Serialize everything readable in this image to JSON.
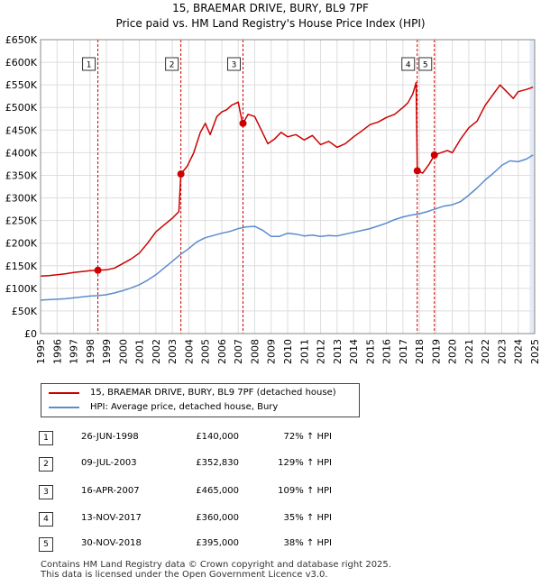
{
  "title": "15, BRAEMAR DRIVE, BURY, BL9 7PF",
  "subtitle": "Price paid vs. HM Land Registry's House Price Index (HPI)",
  "colors": {
    "property": "#cc0000",
    "hpi": "#5b8ccc",
    "marker_line": "#cc0000",
    "grid": "#dddddd",
    "band": "#dde6f3"
  },
  "chart_data": {
    "type": "line",
    "xlim": [
      1995,
      2025
    ],
    "ylim": [
      0,
      650000
    ],
    "yticks": [
      0,
      50000,
      100000,
      150000,
      200000,
      250000,
      300000,
      350000,
      400000,
      450000,
      500000,
      550000,
      600000,
      650000
    ],
    "ytick_labels": [
      "£0",
      "£50K",
      "£100K",
      "£150K",
      "£200K",
      "£250K",
      "£300K",
      "£350K",
      "£400K",
      "£450K",
      "£500K",
      "£550K",
      "£600K",
      "£650K"
    ],
    "xticks": [
      1995,
      1996,
      1997,
      1998,
      1999,
      2000,
      2001,
      2002,
      2003,
      2004,
      2005,
      2006,
      2007,
      2008,
      2009,
      2010,
      2011,
      2012,
      2013,
      2014,
      2015,
      2016,
      2017,
      2018,
      2019,
      2020,
      2021,
      2022,
      2023,
      2024,
      2025
    ],
    "xtick_labels": [
      "1995",
      "1996",
      "1997",
      "1998",
      "1999",
      "2000",
      "2001",
      "2002",
      "2003",
      "2004",
      "2005",
      "2006",
      "2007",
      "2008",
      "2009",
      "2010",
      "2011",
      "2012",
      "2013",
      "2014",
      "2015",
      "2016",
      "2017",
      "2018",
      "2019",
      "2020",
      "2021",
      "2022",
      "2023",
      "2024",
      "2025"
    ],
    "series": [
      {
        "name": "15, BRAEMAR DRIVE, BURY, BL9 7PF (detached house)",
        "color": "#cc0000",
        "x": [
          1995.0,
          1995.5,
          1996.0,
          1996.5,
          1997.0,
          1997.5,
          1998.0,
          1998.48,
          1999.0,
          1999.5,
          2000.0,
          2000.5,
          2001.0,
          2001.5,
          2002.0,
          2002.5,
          2003.0,
          2003.4,
          2003.52,
          2003.9,
          2004.3,
          2004.7,
          2005.0,
          2005.3,
          2005.7,
          2006.0,
          2006.3,
          2006.6,
          2006.9,
          2007.0,
          2007.2,
          2007.29,
          2007.6,
          2008.0,
          2008.4,
          2008.8,
          2009.2,
          2009.6,
          2010.0,
          2010.5,
          2011.0,
          2011.5,
          2012.0,
          2012.5,
          2013.0,
          2013.5,
          2014.0,
          2014.5,
          2015.0,
          2015.5,
          2016.0,
          2016.5,
          2017.0,
          2017.3,
          2017.6,
          2017.8,
          2017.87,
          2018.2,
          2018.6,
          2018.91,
          2019.3,
          2019.7,
          2020.0,
          2020.5,
          2021.0,
          2021.5,
          2022.0,
          2022.5,
          2022.9,
          2023.3,
          2023.7,
          2024.0,
          2024.5,
          2024.9
        ],
        "values": [
          127000,
          128000,
          130000,
          132000,
          135000,
          137000,
          139000,
          140000,
          141000,
          145000,
          155000,
          165000,
          178000,
          200000,
          225000,
          240000,
          255000,
          270000,
          352830,
          370000,
          400000,
          445000,
          465000,
          440000,
          480000,
          490000,
          495000,
          505000,
          510000,
          512000,
          475000,
          465000,
          485000,
          480000,
          450000,
          420000,
          430000,
          445000,
          435000,
          440000,
          428000,
          438000,
          418000,
          425000,
          412000,
          420000,
          435000,
          448000,
          462000,
          468000,
          478000,
          485000,
          500000,
          510000,
          530000,
          555000,
          360000,
          355000,
          375000,
          395000,
          400000,
          405000,
          400000,
          430000,
          455000,
          470000,
          505000,
          530000,
          550000,
          535000,
          520000,
          535000,
          540000,
          545000
        ]
      },
      {
        "name": "HPI: Average price, detached house, Bury",
        "color": "#5b8ccc",
        "x": [
          1995.0,
          1995.5,
          1996.0,
          1996.5,
          1997.0,
          1997.5,
          1998.0,
          1998.5,
          1999.0,
          1999.5,
          2000.0,
          2000.5,
          2001.0,
          2001.5,
          2002.0,
          2002.5,
          2003.0,
          2003.5,
          2004.0,
          2004.5,
          2005.0,
          2005.5,
          2006.0,
          2006.5,
          2007.0,
          2007.5,
          2008.0,
          2008.5,
          2009.0,
          2009.5,
          2010.0,
          2010.5,
          2011.0,
          2011.5,
          2012.0,
          2012.5,
          2013.0,
          2013.5,
          2014.0,
          2014.5,
          2015.0,
          2015.5,
          2016.0,
          2016.5,
          2017.0,
          2017.5,
          2018.0,
          2018.5,
          2019.0,
          2019.5,
          2020.0,
          2020.5,
          2021.0,
          2021.5,
          2022.0,
          2022.5,
          2023.0,
          2023.5,
          2024.0,
          2024.5,
          2024.9
        ],
        "values": [
          74000,
          75000,
          76000,
          77000,
          79000,
          81000,
          83000,
          84000,
          86000,
          90000,
          95000,
          101000,
          108000,
          118000,
          130000,
          145000,
          160000,
          175000,
          188000,
          203000,
          212000,
          217000,
          222000,
          226000,
          232000,
          236000,
          237000,
          228000,
          215000,
          215000,
          222000,
          220000,
          216000,
          218000,
          215000,
          217000,
          216000,
          220000,
          224000,
          228000,
          232000,
          238000,
          244000,
          252000,
          258000,
          262000,
          265000,
          270000,
          276000,
          282000,
          285000,
          292000,
          306000,
          322000,
          340000,
          355000,
          372000,
          382000,
          380000,
          386000,
          395000
        ]
      }
    ],
    "sales": [
      {
        "label": "1",
        "x": 1998.48,
        "value": 140000
      },
      {
        "label": "2",
        "x": 2003.52,
        "value": 352830
      },
      {
        "label": "3",
        "x": 2007.29,
        "value": 465000
      },
      {
        "label": "4",
        "x": 2017.87,
        "value": 360000
      },
      {
        "label": "5",
        "x": 2018.91,
        "value": 395000
      }
    ]
  },
  "legend": {
    "property": "15, BRAEMAR DRIVE, BURY, BL9 7PF (detached house)",
    "hpi": "HPI: Average price, detached house, Bury"
  },
  "sales_table": [
    {
      "num": "1",
      "date": "26-JUN-1998",
      "price": "£140,000",
      "hpi": "72% ↑ HPI"
    },
    {
      "num": "2",
      "date": "09-JUL-2003",
      "price": "£352,830",
      "hpi": "129% ↑ HPI"
    },
    {
      "num": "3",
      "date": "16-APR-2007",
      "price": "£465,000",
      "hpi": "109% ↑ HPI"
    },
    {
      "num": "4",
      "date": "13-NOV-2017",
      "price": "£360,000",
      "hpi": "35% ↑ HPI"
    },
    {
      "num": "5",
      "date": "30-NOV-2018",
      "price": "£395,000",
      "hpi": "38% ↑ HPI"
    }
  ],
  "footer": {
    "line1": "Contains HM Land Registry data © Crown copyright and database right 2025.",
    "line2": "This data is licensed under the Open Government Licence v3.0."
  }
}
